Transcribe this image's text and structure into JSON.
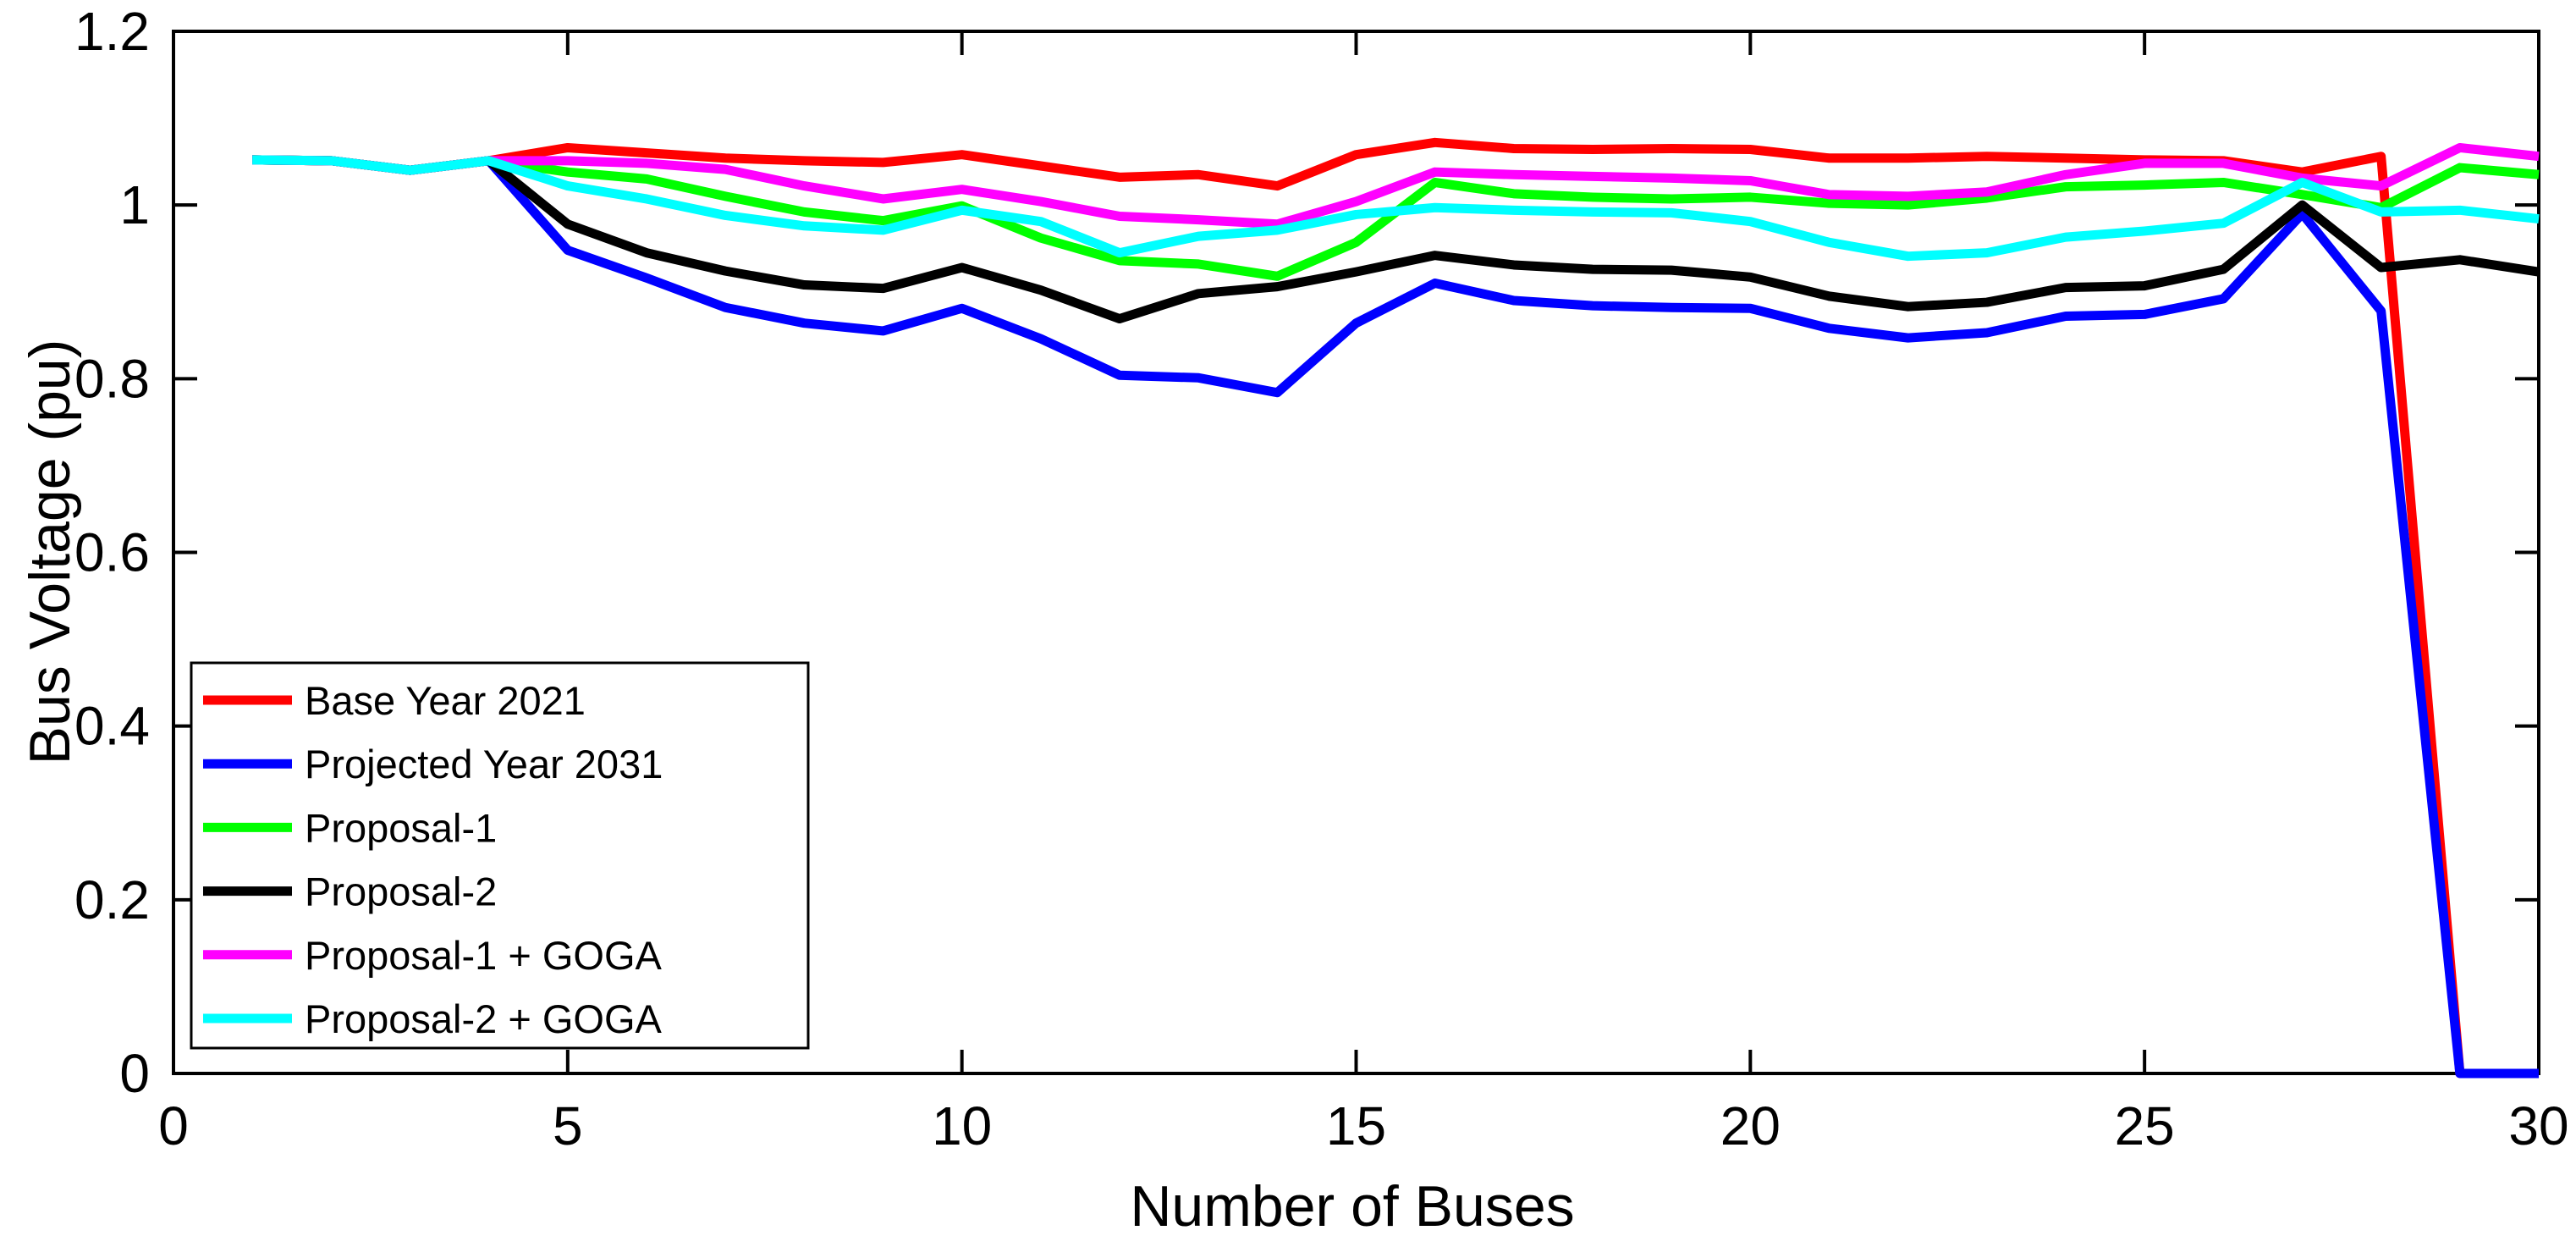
{
  "chart_data": {
    "type": "line",
    "title": "",
    "xlabel": "Number of Buses",
    "ylabel": "Bus Voltage (pu)",
    "xlim": [
      0,
      30
    ],
    "ylim": [
      0,
      1.2
    ],
    "xticks": [
      0,
      5,
      10,
      15,
      20,
      25,
      30
    ],
    "yticks": [
      0,
      0.2,
      0.4,
      0.6,
      0.8,
      1,
      1.2
    ],
    "grid": false,
    "legend_position": "lower-left",
    "x": [
      1,
      2,
      3,
      4,
      5,
      6,
      7,
      8,
      9,
      10,
      11,
      12,
      13,
      14,
      15,
      16,
      17,
      18,
      19,
      20,
      21,
      22,
      23,
      24,
      25,
      26,
      27,
      28,
      29,
      30
    ],
    "series": [
      {
        "name": "Base Year 2021",
        "color": "#ff0000",
        "values": [
          1.052,
          1.051,
          1.04,
          1.051,
          1.066,
          1.06,
          1.054,
          1.051,
          1.049,
          1.058,
          1.045,
          1.032,
          1.035,
          1.022,
          1.058,
          1.072,
          1.065,
          1.064,
          1.065,
          1.064,
          1.054,
          1.054,
          1.056,
          1.054,
          1.052,
          1.051,
          1.038,
          1.056,
          0,
          0
        ]
      },
      {
        "name": "Projected Year 2031",
        "color": "#0000ff",
        "values": [
          1.052,
          1.051,
          1.04,
          1.051,
          0.948,
          0.916,
          0.882,
          0.864,
          0.855,
          0.881,
          0.846,
          0.804,
          0.801,
          0.784,
          0.864,
          0.91,
          0.89,
          0.884,
          0.882,
          0.881,
          0.858,
          0.847,
          0.853,
          0.872,
          0.874,
          0.892,
          0.99,
          0.878,
          0,
          0
        ]
      },
      {
        "name": "Proposal-1",
        "color": "#00ff00",
        "values": [
          1.052,
          1.051,
          1.04,
          1.051,
          1.038,
          1.03,
          1.01,
          0.992,
          0.982,
          0.999,
          0.962,
          0.936,
          0.932,
          0.918,
          0.957,
          1.026,
          1.013,
          1.009,
          1.007,
          1.009,
          1.002,
          1.0,
          1.008,
          1.021,
          1.023,
          1.026,
          1.012,
          0.997,
          1.043,
          1.035
        ]
      },
      {
        "name": "Proposal-2",
        "color": "#000000",
        "values": [
          1.052,
          1.051,
          1.04,
          1.051,
          0.978,
          0.945,
          0.924,
          0.908,
          0.904,
          0.928,
          0.902,
          0.869,
          0.898,
          0.906,
          0.923,
          0.942,
          0.931,
          0.926,
          0.925,
          0.917,
          0.895,
          0.883,
          0.888,
          0.905,
          0.907,
          0.926,
          1.0,
          0.928,
          0.937,
          0.923
        ]
      },
      {
        "name": "Proposal-1 + GOGA",
        "color": "#ff00ff",
        "values": [
          1.052,
          1.051,
          1.04,
          1.051,
          1.051,
          1.048,
          1.041,
          1.022,
          1.007,
          1.018,
          1.004,
          0.987,
          0.983,
          0.978,
          1.004,
          1.038,
          1.035,
          1.033,
          1.031,
          1.028,
          1.012,
          1.01,
          1.015,
          1.035,
          1.048,
          1.048,
          1.031,
          1.022,
          1.066,
          1.056
        ]
      },
      {
        "name": "Proposal-2 + GOGA",
        "color": "#00ffff",
        "values": [
          1.052,
          1.051,
          1.04,
          1.051,
          1.022,
          1.007,
          0.988,
          0.976,
          0.971,
          0.994,
          0.981,
          0.945,
          0.964,
          0.971,
          0.989,
          0.997,
          0.994,
          0.992,
          0.991,
          0.981,
          0.957,
          0.941,
          0.945,
          0.963,
          0.97,
          0.979,
          1.026,
          0.992,
          0.994,
          0.984
        ]
      }
    ]
  }
}
